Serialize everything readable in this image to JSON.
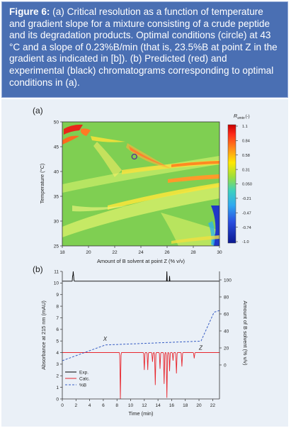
{
  "caption": {
    "label": "Figure 6:",
    "text": " (a) Critical resolution as a function of temperature and gradient slope for a mixture consisting of a crude peptide and its degradation products. Optimal conditions (circle) at 43 °C and a slope of 0.23%B/min (that is, 23.5%B at point Z in the gradient as indicated in [b]). (b) Predicted (red) and experimental (black) chromatograms corresponding to optimal conditions in (a)."
  },
  "panel_a": {
    "label": "(a)",
    "colorbar_title": "R",
    "colorbar_sub": "smin",
    "colorbar_unit": "(-)"
  },
  "panel_b": {
    "label": "(b)",
    "annot_x": "X",
    "annot_z": "Z"
  },
  "chart_data": [
    {
      "type": "heatmap",
      "xlabel": "Amount of B solvent at point Z (% v/v)",
      "ylabel": "Temperature (°C)",
      "xlim": [
        18,
        30
      ],
      "ylim": [
        25,
        50
      ],
      "x_ticks": [
        "18",
        "20",
        "22",
        "24",
        "26",
        "28",
        "30"
      ],
      "y_ticks": [
        "25",
        "30",
        "35",
        "40",
        "45",
        "50"
      ],
      "colorbar_ticks": [
        "1.1",
        "0.84",
        "0.58",
        "0.31",
        "0.050",
        "-0.21",
        "-0.47",
        "-0.74",
        "-1.0"
      ],
      "colorbar_range": [
        -1.0,
        1.1
      ],
      "optimum_marker": {
        "x": 23.5,
        "y": 43
      }
    },
    {
      "type": "line",
      "xlabel": "Time (min)",
      "ylabel": "Absorbance at 215 nm (mAU)",
      "y2label": "Amount of B solvent (% v/v)",
      "xlim": [
        0,
        23
      ],
      "ylim": [
        0,
        11
      ],
      "y2lim": [
        -40,
        110
      ],
      "x_ticks": [
        "0",
        "2",
        "4",
        "6",
        "8",
        "10",
        "12",
        "14",
        "16",
        "18",
        "20",
        "22"
      ],
      "y_ticks": [
        "0",
        "1",
        "2",
        "3",
        "4",
        "5",
        "6",
        "7",
        "8",
        "9",
        "10",
        "11"
      ],
      "y2_ticks": [
        "0",
        "20",
        "40",
        "60",
        "80",
        "100"
      ],
      "legend": [
        "Exp.",
        "Calc.",
        "%B"
      ],
      "legend_position": "bottom-left",
      "series": [
        {
          "name": "Exp.",
          "color": "#000000",
          "peaks": [
            [
              1.6,
              11.0
            ],
            [
              8.5,
              9.2
            ],
            [
              12.0,
              7.6
            ],
            [
              12.4,
              7.2
            ],
            [
              12.9,
              8.0
            ],
            [
              13.6,
              9.5
            ],
            [
              14.3,
              8.1
            ],
            [
              14.9,
              9.0
            ],
            [
              15.3,
              11.0
            ],
            [
              15.7,
              10.6
            ],
            [
              16.3,
              8.0
            ],
            [
              16.7,
              7.4
            ],
            [
              17.5,
              7.2
            ],
            [
              19.3,
              6.9
            ]
          ]
        },
        {
          "name": "Calc.",
          "color": "#e8262d",
          "peaks": [
            [
              8.5,
              0.0
            ],
            [
              12.0,
              2.5
            ],
            [
              12.5,
              2.5
            ],
            [
              13.2,
              3.2
            ],
            [
              13.6,
              1.2
            ],
            [
              14.3,
              2.6
            ],
            [
              14.9,
              1.3
            ],
            [
              15.3,
              0.1
            ],
            [
              15.7,
              2.4
            ],
            [
              16.2,
              3.3
            ],
            [
              16.7,
              2.2
            ],
            [
              17.5,
              2.8
            ],
            [
              19.3,
              3.5
            ]
          ]
        },
        {
          "name": "%B",
          "color": "#3a5fc4",
          "x": [
            0,
            6.3,
            20.3,
            22.2,
            23
          ],
          "y": [
            5,
            23.5,
            28,
            62,
            64
          ]
        }
      ]
    }
  ]
}
